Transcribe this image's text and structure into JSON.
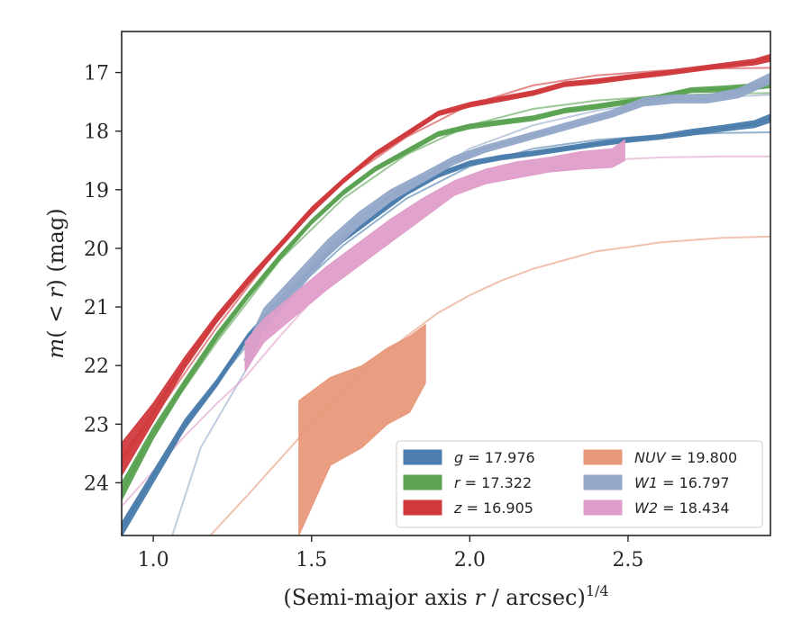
{
  "chart_data": {
    "type": "line",
    "title": "",
    "xlabel": "(Semi-major axis r / arcsec)^{1/4}",
    "xlabel_parts": {
      "prefix": "(Semi-major axis ",
      "var": "r",
      "suffix": " / arcsec)",
      "exponent": "1/4"
    },
    "ylabel": "m(<r) (mag)",
    "ylabel_parts": {
      "var": "m",
      "mid": "( < ",
      "var2": "r",
      "suffix": ") (mag)"
    },
    "xlim": [
      0.9,
      2.95
    ],
    "ylim": [
      24.9,
      16.3
    ],
    "y_inverted": true,
    "x_ticks": [
      1.0,
      1.5,
      2.0,
      2.5
    ],
    "x_tick_labels": [
      "1.0",
      "1.5",
      "2.0",
      "2.5"
    ],
    "y_ticks": [
      17,
      18,
      19,
      20,
      21,
      22,
      23,
      24
    ],
    "y_tick_labels": [
      "17",
      "18",
      "19",
      "20",
      "21",
      "22",
      "23",
      "24"
    ],
    "grid": false,
    "legend_position": "bottom-right",
    "series": [
      {
        "name": "g = 17.976",
        "label_var": "g",
        "label_val": "17.976",
        "color": "#4c7ead",
        "x": [
          0.9,
          1.0,
          1.1,
          1.2,
          1.3,
          1.4,
          1.5,
          1.6,
          1.7,
          1.8,
          1.9,
          2.0,
          2.1,
          2.2,
          2.3,
          2.4,
          2.5,
          2.6,
          2.7,
          2.8,
          2.9,
          2.95
        ],
        "y": [
          24.8,
          23.9,
          23.0,
          22.3,
          21.5,
          20.9,
          20.35,
          19.85,
          19.45,
          19.05,
          18.75,
          18.55,
          18.45,
          18.38,
          18.3,
          18.22,
          18.15,
          18.1,
          18.02,
          17.95,
          17.88,
          17.78
        ],
        "band": [
          0.12,
          0.1,
          0.08,
          0.06,
          0.05,
          0.05,
          0.04,
          0.04,
          0.04,
          0.04,
          0.04,
          0.04,
          0.04,
          0.04,
          0.04,
          0.04,
          0.04,
          0.04,
          0.05,
          0.05,
          0.06,
          0.07
        ],
        "model_x": [
          0.9,
          1.0,
          1.2,
          1.4,
          1.6,
          1.8,
          2.0,
          2.2,
          2.4,
          2.6,
          2.8,
          2.95
        ],
        "model_y": [
          24.7,
          23.85,
          22.3,
          20.95,
          19.95,
          19.15,
          18.6,
          18.3,
          18.15,
          18.07,
          18.03,
          18.02
        ]
      },
      {
        "name": "r = 17.322",
        "label_var": "r",
        "label_val": "17.322",
        "color": "#5ba353",
        "x": [
          0.9,
          1.0,
          1.1,
          1.2,
          1.3,
          1.4,
          1.5,
          1.6,
          1.7,
          1.8,
          1.9,
          2.0,
          2.1,
          2.2,
          2.3,
          2.4,
          2.5,
          2.6,
          2.7,
          2.8,
          2.9,
          2.95
        ],
        "y": [
          24.15,
          23.15,
          22.3,
          21.5,
          20.8,
          20.15,
          19.55,
          19.05,
          18.65,
          18.35,
          18.05,
          17.92,
          17.85,
          17.78,
          17.65,
          17.58,
          17.5,
          17.42,
          17.3,
          17.28,
          17.24,
          17.2
        ],
        "band": [
          0.15,
          0.1,
          0.07,
          0.06,
          0.05,
          0.05,
          0.04,
          0.04,
          0.04,
          0.04,
          0.04,
          0.04,
          0.04,
          0.04,
          0.04,
          0.04,
          0.04,
          0.04,
          0.04,
          0.05,
          0.05,
          0.06
        ],
        "model_x": [
          0.9,
          1.0,
          1.2,
          1.4,
          1.6,
          1.8,
          2.0,
          2.2,
          2.4,
          2.6,
          2.8,
          2.95
        ],
        "model_y": [
          24.0,
          23.15,
          21.6,
          20.2,
          19.15,
          18.4,
          17.9,
          17.62,
          17.48,
          17.4,
          17.36,
          17.35
        ]
      },
      {
        "name": "z = 16.905",
        "label_var": "z",
        "label_val": "16.905",
        "color": "#d03a3d",
        "x": [
          0.9,
          1.0,
          1.1,
          1.2,
          1.3,
          1.4,
          1.5,
          1.6,
          1.7,
          1.8,
          1.9,
          2.0,
          2.1,
          2.2,
          2.3,
          2.4,
          2.5,
          2.6,
          2.7,
          2.8,
          2.9,
          2.95
        ],
        "y": [
          23.6,
          22.8,
          21.95,
          21.2,
          20.55,
          19.95,
          19.35,
          18.85,
          18.4,
          18.05,
          17.7,
          17.55,
          17.45,
          17.35,
          17.2,
          17.15,
          17.08,
          17.02,
          16.95,
          16.88,
          16.82,
          16.75
        ],
        "band": [
          0.28,
          0.16,
          0.1,
          0.07,
          0.06,
          0.05,
          0.05,
          0.04,
          0.04,
          0.04,
          0.04,
          0.04,
          0.04,
          0.04,
          0.04,
          0.04,
          0.04,
          0.04,
          0.04,
          0.04,
          0.05,
          0.06
        ],
        "model_x": [
          0.9,
          1.0,
          1.2,
          1.4,
          1.6,
          1.8,
          2.0,
          2.2,
          2.4,
          2.6,
          2.8,
          2.95
        ],
        "model_y": [
          23.7,
          22.9,
          21.35,
          19.95,
          18.85,
          18.1,
          17.55,
          17.22,
          17.05,
          16.97,
          16.93,
          16.92
        ]
      },
      {
        "name": "NUV = 19.800",
        "label_var": "NUV",
        "label_val": "19.800",
        "color": "#e8987a",
        "x": [
          1.46,
          1.56,
          1.66,
          1.74,
          1.81,
          1.86
        ],
        "y_low": [
          24.9,
          23.7,
          23.4,
          23.0,
          22.8,
          22.3
        ],
        "y_high": [
          22.6,
          22.2,
          22.0,
          21.7,
          21.5,
          21.3
        ],
        "model_x": [
          1.18,
          1.3,
          1.4,
          1.5,
          1.6,
          1.7,
          1.8,
          1.9,
          2.0,
          2.1,
          2.2,
          2.3,
          2.4,
          2.5,
          2.6,
          2.7,
          2.8,
          2.95
        ],
        "model_y": [
          24.9,
          24.2,
          23.6,
          23.0,
          22.45,
          21.95,
          21.5,
          21.1,
          20.8,
          20.55,
          20.35,
          20.2,
          20.05,
          19.98,
          19.9,
          19.86,
          19.82,
          19.8
        ]
      },
      {
        "name": "W1 = 16.797",
        "label_var": "W1",
        "label_val": "16.797",
        "color": "#94a8c9",
        "x": [
          1.29,
          1.35,
          1.45,
          1.55,
          1.65,
          1.75,
          1.85,
          1.95,
          2.05,
          2.15,
          2.25,
          2.35,
          2.45,
          2.55,
          2.65,
          2.75,
          2.85,
          2.95
        ],
        "y": [
          21.9,
          21.2,
          20.6,
          20.0,
          19.5,
          19.1,
          18.8,
          18.5,
          18.3,
          18.15,
          18.0,
          17.85,
          17.7,
          17.5,
          17.45,
          17.45,
          17.35,
          17.1
        ],
        "band": [
          0.2,
          0.18,
          0.16,
          0.14,
          0.12,
          0.1,
          0.08,
          0.07,
          0.06,
          0.06,
          0.06,
          0.06,
          0.06,
          0.07,
          0.07,
          0.07,
          0.08,
          0.09
        ],
        "model_x": [
          1.06,
          1.15,
          1.29,
          1.4,
          1.55,
          1.7,
          1.85,
          2.0,
          2.2,
          2.4,
          2.6,
          2.8,
          2.95
        ],
        "model_y": [
          24.9,
          23.4,
          22.1,
          21.1,
          20.1,
          19.35,
          18.8,
          18.3,
          17.9,
          17.65,
          17.5,
          17.42,
          17.38
        ]
      },
      {
        "name": "W2 = 18.434",
        "label_var": "W2",
        "label_val": "18.434",
        "color": "#df9ec9",
        "x": [
          1.29,
          1.35,
          1.45,
          1.55,
          1.65,
          1.75,
          1.85,
          1.95,
          2.05,
          2.15,
          2.25,
          2.35,
          2.45,
          2.49
        ],
        "y_low": [
          22.1,
          21.6,
          21.15,
          20.7,
          20.3,
          19.9,
          19.5,
          19.1,
          18.9,
          18.8,
          18.7,
          18.65,
          18.62,
          18.5
        ],
        "y_high": [
          21.6,
          21.2,
          20.75,
          20.3,
          19.9,
          19.5,
          19.15,
          18.85,
          18.65,
          18.52,
          18.45,
          18.35,
          18.3,
          18.15
        ],
        "model_x": [
          0.9,
          1.0,
          1.1,
          1.2,
          1.29,
          1.4,
          1.55,
          1.7,
          1.85,
          2.0,
          2.2,
          2.4,
          2.6,
          2.8,
          2.95
        ],
        "model_y": [
          24.4,
          23.8,
          23.2,
          22.65,
          22.2,
          21.5,
          20.6,
          19.9,
          19.35,
          18.9,
          18.62,
          18.5,
          18.45,
          18.43,
          18.43
        ]
      }
    ]
  }
}
